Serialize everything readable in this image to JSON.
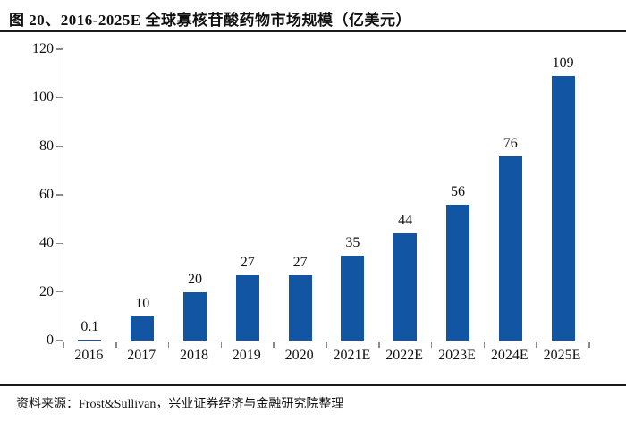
{
  "figure": {
    "title": "图 20、2016-2025E 全球寡核苷酸药物市场规模（亿美元）",
    "source_note": "资料来源：Frost&Sullivan，兴业证券经济与金融研究院整理"
  },
  "chart_data": {
    "type": "bar",
    "title": "图 20、2016-2025E 全球寡核苷酸药物市场规模（亿美元）",
    "categories": [
      "2016",
      "2017",
      "2018",
      "2019",
      "2020",
      "2021E",
      "2022E",
      "2023E",
      "2024E",
      "2025E"
    ],
    "values": [
      0.1,
      10,
      20,
      27,
      27,
      35,
      44,
      56,
      76,
      109
    ],
    "data_labels": [
      "0.1",
      "10",
      "20",
      "27",
      "27",
      "35",
      "44",
      "56",
      "76",
      "109"
    ],
    "xlabel": "",
    "ylabel": "",
    "ylim": [
      0,
      120
    ],
    "yticks": [
      0,
      20,
      40,
      60,
      80,
      100,
      120
    ],
    "grid": false,
    "legend": "none",
    "bar_color": "#1155a3",
    "axis_color": "#8a8a8a",
    "text_color": "#111111",
    "unit": "亿美元"
  }
}
